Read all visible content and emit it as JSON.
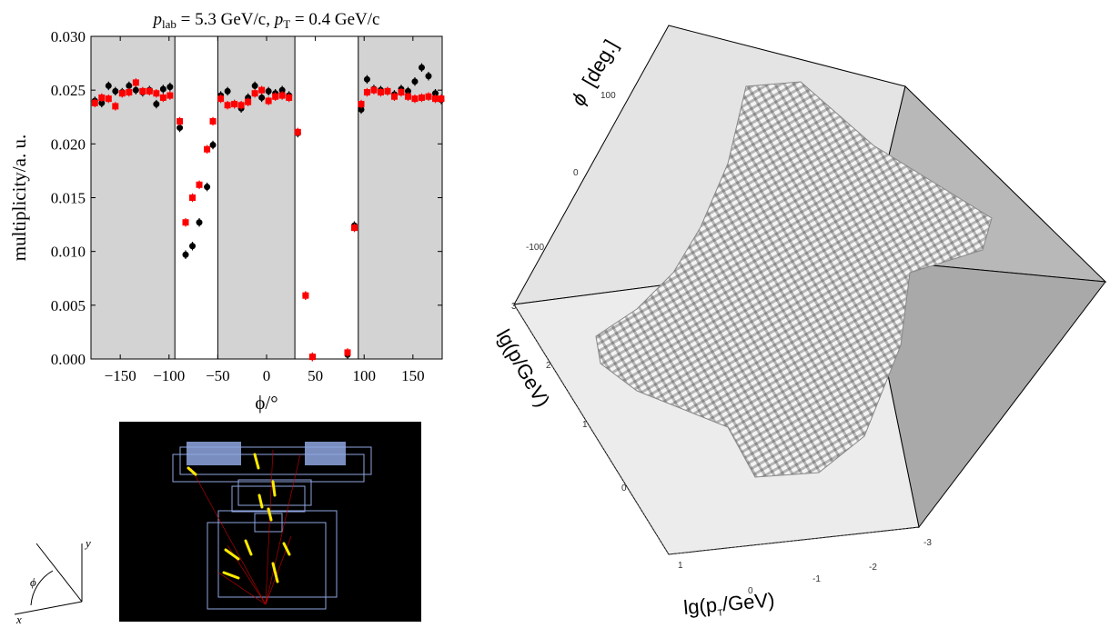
{
  "chart_data": {
    "type": "scatter",
    "title": [
      "p",
      "lab",
      " = 5.3 GeV/c, ",
      "p",
      "T",
      " = 0.4 GeV/c"
    ],
    "x_label": "ϕ/°",
    "y_label": "multiplicity/a. u.",
    "xlim": [
      -180,
      180
    ],
    "ylim": [
      0,
      0.03
    ],
    "xticks": [
      {
        "value": -150,
        "label": "−150"
      },
      {
        "value": -100,
        "label": "−100"
      },
      {
        "value": -50,
        "label": "−50"
      },
      0,
      50,
      100,
      150
    ],
    "yticks": [
      {
        "value": 0,
        "label": "0.000"
      },
      {
        "value": 0.005,
        "label": "0.005"
      },
      {
        "value": 0.01,
        "label": "0.010"
      },
      {
        "value": 0.015,
        "label": "0.015"
      },
      {
        "value": 0.02,
        "label": "0.020"
      },
      {
        "value": 0.025,
        "label": "0.025"
      },
      {
        "value": 0.03,
        "label": "0.030"
      }
    ],
    "shaded_regions": [
      [
        -180,
        -94
      ],
      [
        -50,
        29
      ],
      [
        94,
        180
      ]
    ],
    "shade_color": "#d3d3d3",
    "x": [
      -176,
      -169,
      -162,
      -155,
      -148,
      -141,
      -134,
      -127,
      -120,
      -113,
      -106,
      -99,
      -89,
      -83,
      -76,
      -69,
      -61,
      -55,
      -47,
      -40,
      -33,
      -26,
      -19,
      -12,
      -5,
      2,
      9,
      16,
      23,
      32,
      40,
      47,
      83,
      90,
      97,
      103,
      110,
      117,
      124,
      131,
      138,
      145,
      152,
      159,
      166,
      173,
      179
    ],
    "series": [
      {
        "color": "#000000",
        "marker": "circle",
        "error": 0.0004,
        "values": [
          0.024,
          0.0238,
          0.0254,
          0.0249,
          0.0248,
          0.0254,
          0.025,
          0.0248,
          0.025,
          0.0237,
          0.0251,
          0.0253,
          0.0215,
          0.0097,
          0.0105,
          0.0127,
          0.016,
          0.0199,
          0.0245,
          0.0249,
          0.0237,
          0.0233,
          0.0243,
          0.0254,
          0.0243,
          0.0249,
          0.0247,
          0.025,
          0.0245,
          0.021,
          0.0059,
          0.0002,
          0.0004,
          0.0124,
          0.0232,
          0.026,
          0.0251,
          0.025,
          0.0249,
          0.0246,
          0.0251,
          0.0249,
          0.0258,
          0.0271,
          0.0263,
          0.0247,
          0.0241
        ]
      },
      {
        "color": "#ff0000",
        "marker": "square",
        "error": 0.0004,
        "values": [
          0.0238,
          0.0243,
          0.0242,
          0.0235,
          0.0247,
          0.0248,
          0.0257,
          0.0249,
          0.0249,
          0.0247,
          0.0243,
          0.0245,
          0.0221,
          0.0127,
          0.015,
          0.0162,
          0.0195,
          0.0221,
          0.0242,
          0.0236,
          0.0237,
          0.0236,
          0.0239,
          0.0247,
          0.025,
          0.024,
          0.0244,
          0.0245,
          0.0243,
          0.0211,
          0.0059,
          0.0002,
          0.0006,
          0.0122,
          0.0237,
          0.0248,
          0.025,
          0.0248,
          0.0249,
          0.0244,
          0.0248,
          0.0244,
          0.0242,
          0.0243,
          0.0244,
          0.0242,
          0.0242
        ]
      }
    ]
  },
  "coordinate_sketch": {
    "y": "y",
    "x": "x",
    "angle": "ϕ"
  },
  "acceptance_3d": {
    "phi_title": [
      "ϕ",
      "[deg.]"
    ],
    "p_title": "lg(p/GeV)",
    "pt_title": [
      "lg(p",
      "T",
      "/GeV)"
    ],
    "phi_ticks": [
      "100",
      "0",
      "-100"
    ],
    "p_ticks": [
      "3",
      "2",
      "1",
      "0"
    ],
    "pt_ticks": [
      "1",
      "0",
      "-1",
      "-2",
      "-3"
    ]
  }
}
